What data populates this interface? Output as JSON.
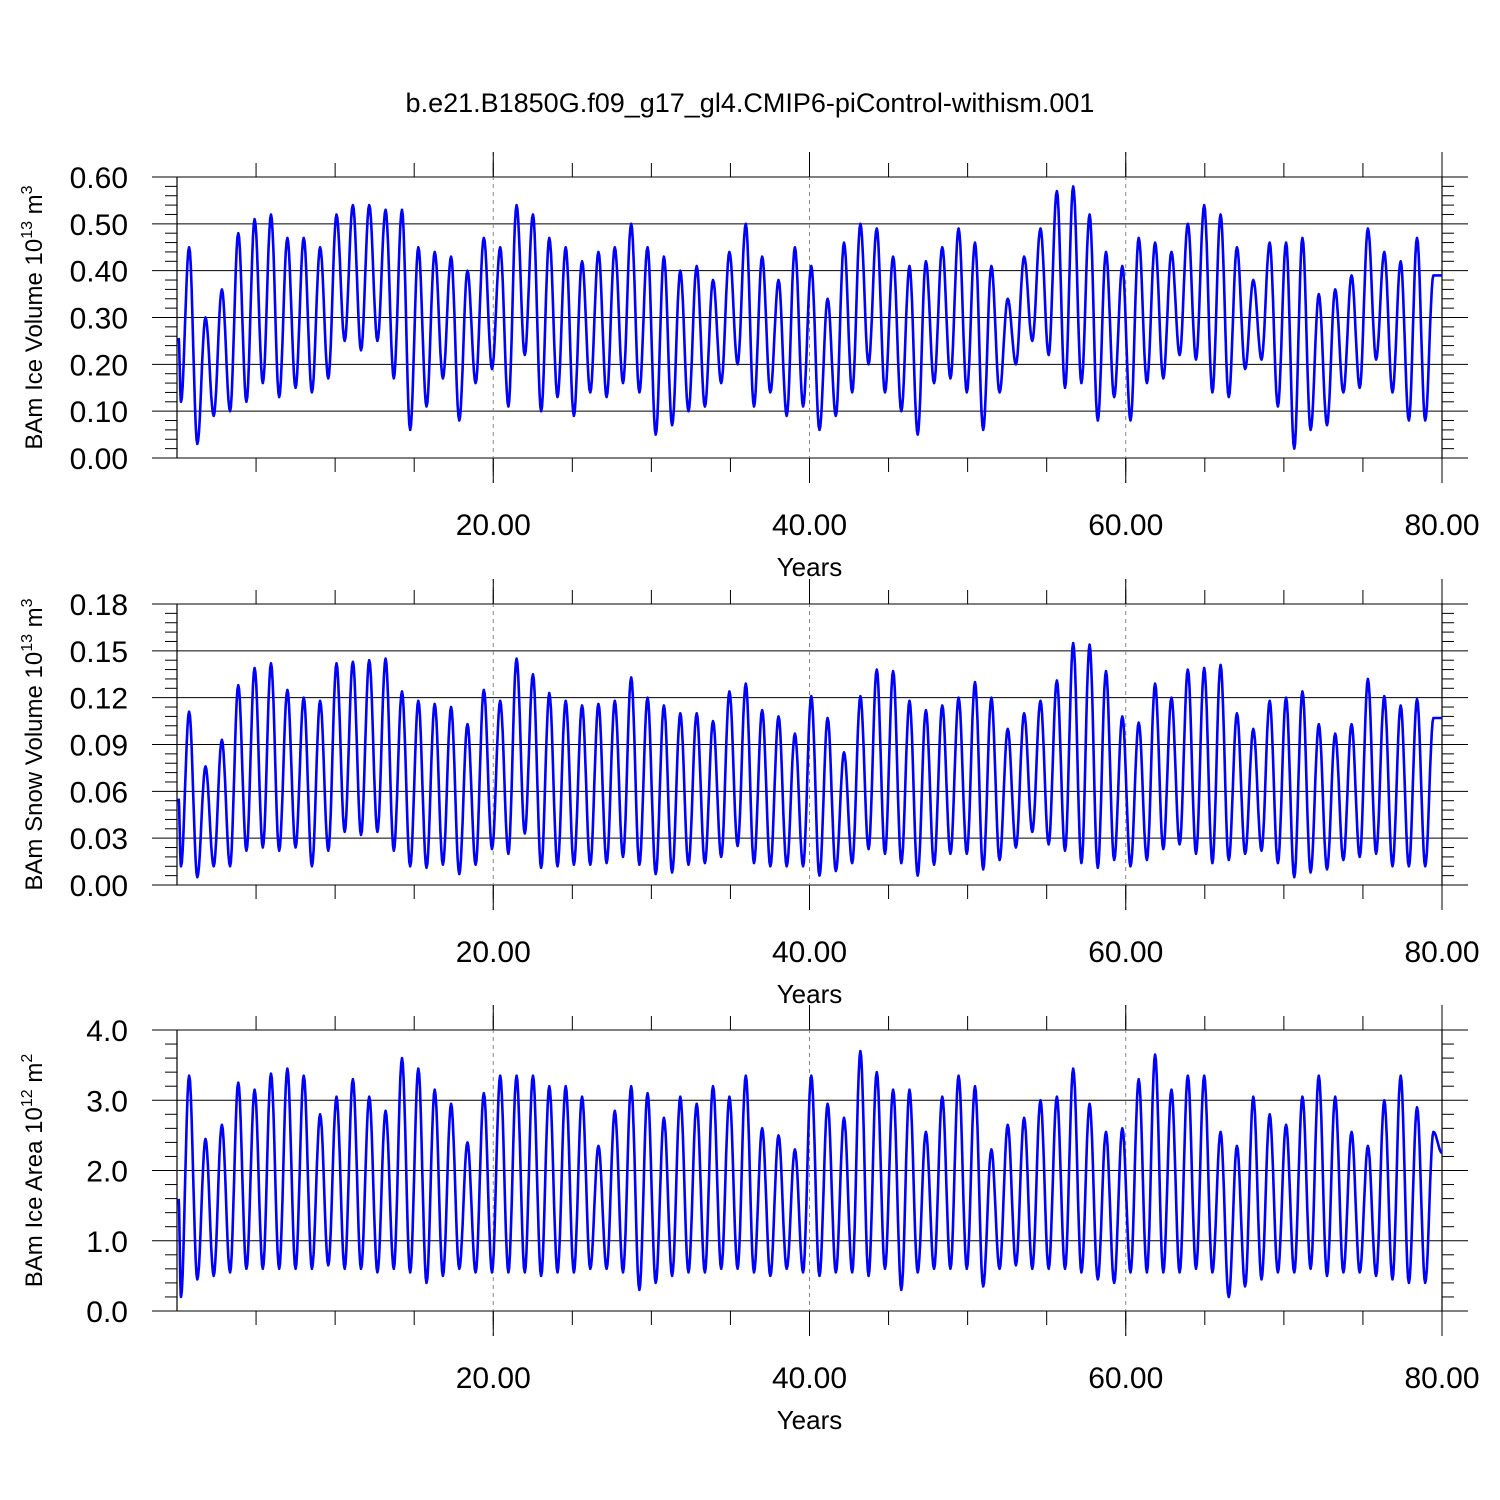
{
  "title": "b.e21.B1850G.f09_g17_gl4.CMIP6-piControl-withism.001",
  "series_color": "#0000ff",
  "chart_data": [
    {
      "type": "line",
      "ylabel": "BAm Ice Volume 10",
      "ylabel_exp": "13",
      "ylabel_unit": " m",
      "ylabel_unit_exp": "3",
      "xlabel": "Years",
      "xlim": [
        0,
        80
      ],
      "ylim": [
        0,
        0.6
      ],
      "xticks": [
        "20.00",
        "40.00",
        "60.00",
        "80.00"
      ],
      "yticks": [
        "0.00",
        "0.10",
        "0.20",
        "0.30",
        "0.40",
        "0.50",
        "0.60"
      ],
      "peaks": [
        0.45,
        0.3,
        0.36,
        0.48,
        0.51,
        0.52,
        0.47,
        0.47,
        0.45,
        0.52,
        0.54,
        0.54,
        0.53,
        0.53,
        0.45,
        0.44,
        0.43,
        0.4,
        0.47,
        0.45,
        0.54,
        0.52,
        0.47,
        0.45,
        0.42,
        0.44,
        0.45,
        0.5,
        0.45,
        0.43,
        0.4,
        0.41,
        0.38,
        0.44,
        0.5,
        0.43,
        0.38,
        0.45,
        0.41,
        0.34,
        0.46,
        0.5,
        0.49,
        0.43,
        0.41,
        0.42,
        0.45,
        0.49,
        0.46,
        0.41,
        0.34,
        0.43,
        0.49,
        0.57,
        0.58,
        0.52,
        0.44,
        0.41,
        0.47,
        0.46,
        0.44,
        0.5,
        0.54,
        0.52,
        0.45,
        0.38,
        0.46,
        0.46,
        0.47,
        0.35,
        0.36,
        0.39,
        0.49,
        0.44,
        0.42,
        0.47,
        0.39
      ],
      "troughs": [
        0.12,
        0.03,
        0.09,
        0.1,
        0.12,
        0.16,
        0.13,
        0.15,
        0.14,
        0.17,
        0.25,
        0.23,
        0.25,
        0.17,
        0.06,
        0.11,
        0.17,
        0.08,
        0.16,
        0.19,
        0.11,
        0.22,
        0.1,
        0.13,
        0.09,
        0.14,
        0.13,
        0.16,
        0.14,
        0.05,
        0.07,
        0.1,
        0.11,
        0.16,
        0.2,
        0.11,
        0.14,
        0.09,
        0.11,
        0.06,
        0.09,
        0.14,
        0.2,
        0.14,
        0.1,
        0.05,
        0.16,
        0.17,
        0.14,
        0.06,
        0.14,
        0.2,
        0.25,
        0.22,
        0.15,
        0.16,
        0.08,
        0.13,
        0.08,
        0.16,
        0.17,
        0.22,
        0.21,
        0.14,
        0.13,
        0.19,
        0.21,
        0.11,
        0.02,
        0.06,
        0.07,
        0.14,
        0.15,
        0.21,
        0.14,
        0.08
      ],
      "end_value": 0.39
    },
    {
      "type": "line",
      "ylabel": "BAm Snow Volume 10",
      "ylabel_exp": "13",
      "ylabel_unit": " m",
      "ylabel_unit_exp": "3",
      "xlabel": "Years",
      "xlim": [
        0,
        80
      ],
      "ylim": [
        0,
        0.18
      ],
      "xticks": [
        "20.00",
        "40.00",
        "60.00",
        "80.00"
      ],
      "yticks": [
        "0.00",
        "0.03",
        "0.06",
        "0.09",
        "0.12",
        "0.15",
        "0.18"
      ],
      "peaks": [
        0.111,
        0.076,
        0.093,
        0.128,
        0.139,
        0.142,
        0.125,
        0.12,
        0.118,
        0.142,
        0.143,
        0.144,
        0.145,
        0.124,
        0.118,
        0.116,
        0.114,
        0.103,
        0.125,
        0.118,
        0.145,
        0.135,
        0.123,
        0.118,
        0.115,
        0.116,
        0.118,
        0.133,
        0.12,
        0.115,
        0.11,
        0.11,
        0.105,
        0.124,
        0.129,
        0.112,
        0.108,
        0.097,
        0.121,
        0.107,
        0.085,
        0.121,
        0.138,
        0.137,
        0.118,
        0.112,
        0.115,
        0.12,
        0.13,
        0.12,
        0.1,
        0.11,
        0.118,
        0.131,
        0.155,
        0.154,
        0.137,
        0.108,
        0.104,
        0.129,
        0.12,
        0.138,
        0.139,
        0.141,
        0.11,
        0.1,
        0.118,
        0.12,
        0.124,
        0.103,
        0.097,
        0.103,
        0.132,
        0.121,
        0.115,
        0.119,
        0.107
      ],
      "troughs": [
        0.012,
        0.005,
        0.012,
        0.012,
        0.022,
        0.024,
        0.022,
        0.024,
        0.012,
        0.022,
        0.034,
        0.032,
        0.034,
        0.022,
        0.012,
        0.011,
        0.013,
        0.007,
        0.013,
        0.023,
        0.02,
        0.033,
        0.011,
        0.012,
        0.013,
        0.013,
        0.014,
        0.018,
        0.013,
        0.007,
        0.008,
        0.013,
        0.014,
        0.018,
        0.025,
        0.014,
        0.012,
        0.012,
        0.012,
        0.006,
        0.009,
        0.014,
        0.023,
        0.02,
        0.014,
        0.006,
        0.013,
        0.02,
        0.02,
        0.01,
        0.016,
        0.024,
        0.034,
        0.026,
        0.022,
        0.014,
        0.011,
        0.016,
        0.012,
        0.016,
        0.023,
        0.026,
        0.02,
        0.014,
        0.016,
        0.02,
        0.022,
        0.014,
        0.005,
        0.008,
        0.01,
        0.016,
        0.018,
        0.02,
        0.012,
        0.012
      ],
      "end_value": 0.107
    },
    {
      "type": "line",
      "ylabel": "BAm Ice Area 10",
      "ylabel_exp": "12",
      "ylabel_unit": " m",
      "ylabel_unit_exp": "2",
      "xlabel": "Years",
      "xlim": [
        0,
        80
      ],
      "ylim": [
        0,
        4
      ],
      "xticks": [
        "20.00",
        "40.00",
        "60.00",
        "80.00"
      ],
      "yticks": [
        "0.0",
        "1.0",
        "2.0",
        "3.0",
        "4.0"
      ],
      "peaks": [
        3.35,
        2.45,
        2.65,
        3.25,
        3.15,
        3.38,
        3.45,
        3.35,
        2.8,
        3.05,
        3.3,
        3.05,
        2.85,
        3.6,
        3.45,
        3.15,
        2.95,
        2.4,
        3.1,
        3.35,
        3.35,
        3.35,
        3.2,
        3.2,
        3.05,
        2.35,
        2.85,
        3.2,
        3.1,
        2.75,
        3.05,
        2.95,
        3.2,
        3.05,
        3.35,
        2.6,
        2.5,
        2.3,
        3.35,
        2.95,
        2.75,
        3.7,
        3.4,
        3.15,
        3.15,
        2.55,
        3.05,
        3.35,
        3.2,
        2.3,
        2.65,
        2.75,
        3.0,
        3.05,
        3.45,
        2.95,
        2.55,
        2.6,
        3.3,
        3.65,
        3.15,
        3.35,
        3.35,
        2.55,
        2.35,
        3.05,
        2.8,
        2.65,
        3.05,
        3.35,
        3.05,
        2.55,
        2.35,
        3.0,
        3.35,
        2.9,
        2.55
      ],
      "troughs": [
        0.2,
        0.45,
        0.5,
        0.55,
        0.6,
        0.6,
        0.6,
        0.6,
        0.6,
        0.65,
        0.6,
        0.6,
        0.55,
        0.6,
        0.55,
        0.4,
        0.5,
        0.6,
        0.55,
        0.55,
        0.55,
        0.55,
        0.5,
        0.55,
        0.55,
        0.6,
        0.6,
        0.55,
        0.3,
        0.4,
        0.5,
        0.55,
        0.55,
        0.6,
        0.6,
        0.55,
        0.5,
        0.6,
        0.55,
        0.5,
        0.55,
        0.55,
        0.5,
        0.6,
        0.3,
        0.55,
        0.6,
        0.6,
        0.6,
        0.35,
        0.6,
        0.65,
        0.6,
        0.6,
        0.6,
        0.55,
        0.45,
        0.4,
        0.55,
        0.55,
        0.55,
        0.55,
        0.6,
        0.55,
        0.2,
        0.35,
        0.45,
        0.55,
        0.55,
        0.6,
        0.5,
        0.55,
        0.55,
        0.5,
        0.45,
        0.4
      ],
      "end_value": 2.25
    }
  ]
}
